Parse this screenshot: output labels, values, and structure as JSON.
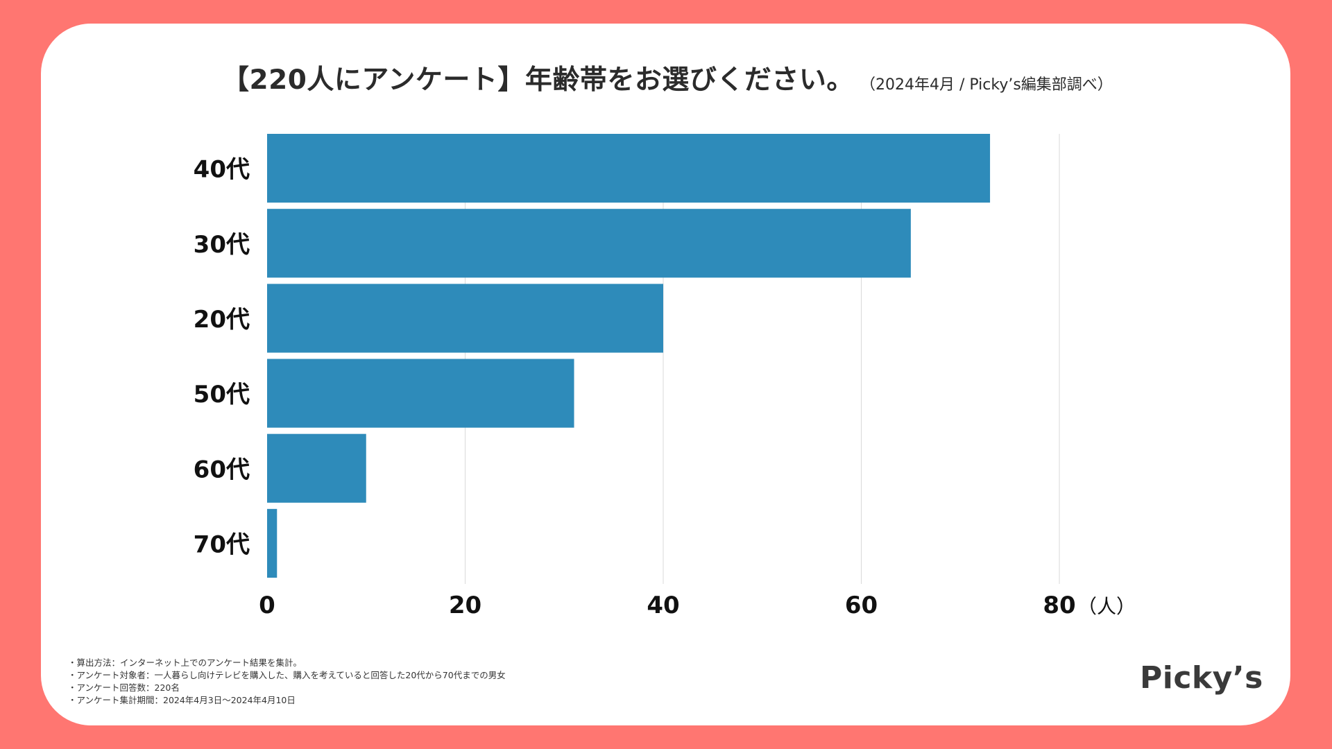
{
  "page": {
    "title": "【220人にアンケート】年齢帯をお選びください。",
    "subtitle": "（2024年4月 / Picky’s編集部調べ）",
    "notes": [
      "・算出方法：インターネット上でのアンケート結果を集計。",
      "・アンケート対象者：一人暮らし向けテレビを購入した、購入を考えていると回答した20代から70代までの男女",
      "・アンケート回答数：220名",
      "・アンケート集計期間：2024年4月3日〜2024年4月10日"
    ],
    "logo": "Picky’s"
  },
  "colors": {
    "background": "#ff7671",
    "card": "#ffffff",
    "bar": "#2e8bba",
    "grid": "#d9d9d9",
    "text": "#2b2b2b"
  },
  "chart_data": {
    "type": "bar",
    "orientation": "horizontal",
    "title": "【220人にアンケート】年齢帯をお選びください。",
    "categories": [
      "40代",
      "30代",
      "20代",
      "50代",
      "60代",
      "70代"
    ],
    "values": [
      73,
      65,
      40,
      31,
      10,
      1
    ],
    "xlim": [
      0,
      80
    ],
    "xticks": [
      0,
      20,
      40,
      60,
      80
    ],
    "xlabel": "（人）",
    "grid": true
  }
}
